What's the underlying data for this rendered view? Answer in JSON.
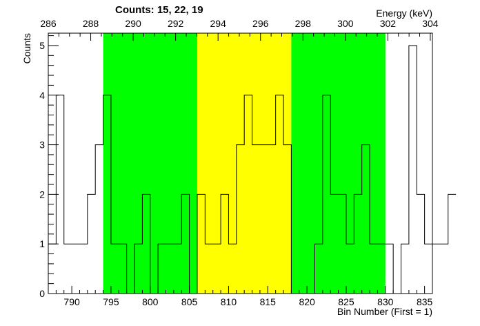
{
  "chart_data": {
    "type": "histogram",
    "title": "Counts:   15,   22,   19",
    "xlabel": "Bin Number (First = 1)",
    "ylabel": "Counts",
    "x2label": "Energy (keV)",
    "xlim": [
      787,
      836
    ],
    "ylim": [
      0,
      5.25
    ],
    "x2lim": [
      286.0,
      304.1
    ],
    "x_ticks": [
      790,
      795,
      800,
      805,
      810,
      815,
      820,
      825,
      830,
      835
    ],
    "y_ticks": [
      0,
      1,
      2,
      3,
      4,
      5
    ],
    "x2_ticks": [
      286,
      288,
      290,
      292,
      294,
      296,
      298,
      300,
      302,
      304
    ],
    "bins": {
      "x_start": 787,
      "bin_width": 1,
      "values": [
        1,
        4,
        1,
        1,
        1,
        2,
        3,
        4,
        1,
        1,
        0,
        1,
        2,
        0,
        1,
        1,
        1,
        2,
        0,
        2,
        1,
        1,
        2,
        1,
        3,
        4,
        3,
        3,
        3,
        4,
        3,
        0,
        0,
        0,
        1,
        4,
        2,
        2,
        1,
        2,
        3,
        1,
        1,
        1,
        0,
        1,
        5,
        2,
        1,
        1,
        1,
        2
      ]
    },
    "regions": [
      {
        "label": "background-left",
        "x_from": 794,
        "x_to": 806,
        "color": "#00ff00"
      },
      {
        "label": "peak",
        "x_from": 806,
        "x_to": 818,
        "color": "#ffff00"
      },
      {
        "label": "background-right",
        "x_from": 818,
        "x_to": 830,
        "color": "#00ff00"
      }
    ],
    "grid": false
  }
}
